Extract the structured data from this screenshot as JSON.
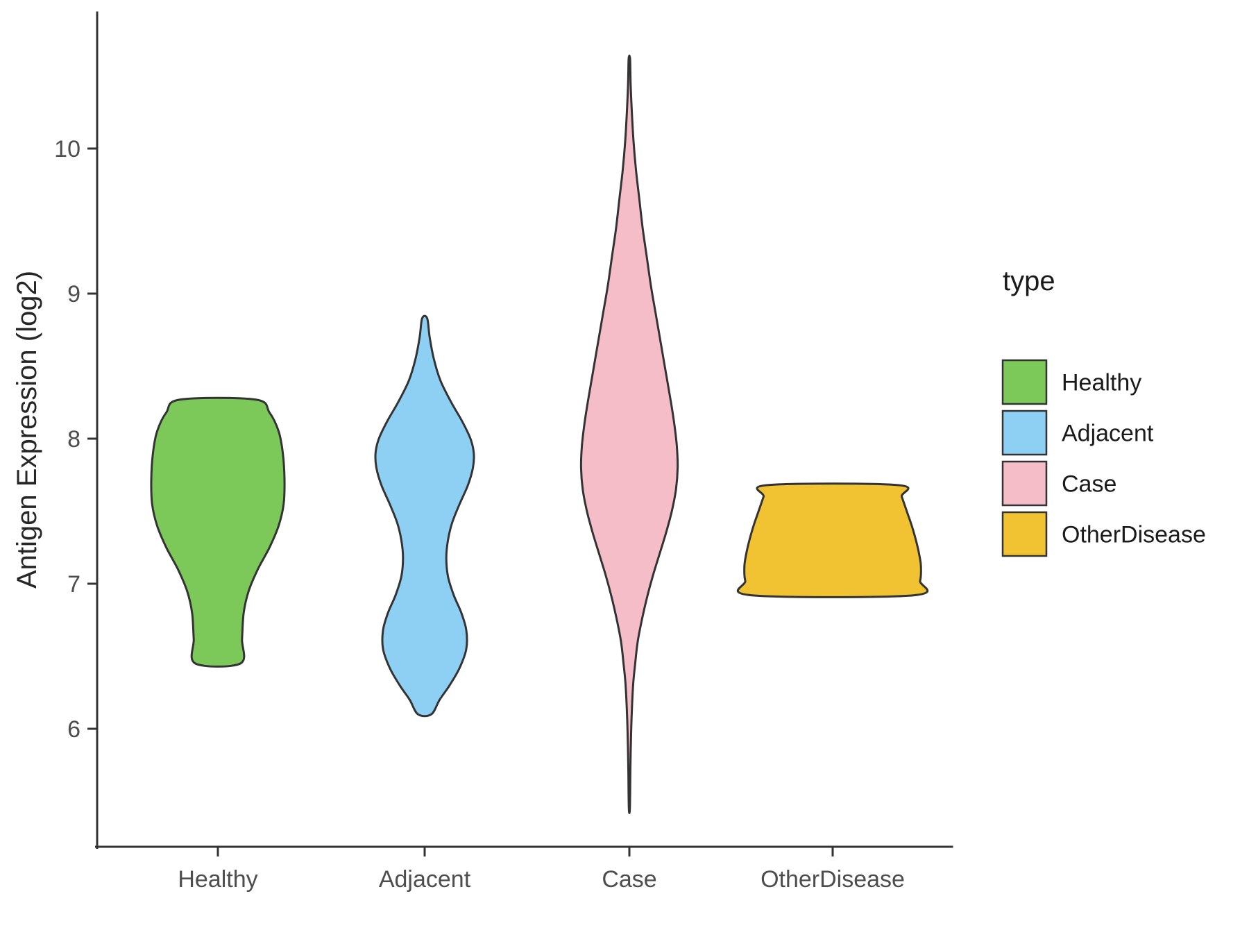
{
  "figure": {
    "background": "#ffffff",
    "axis_color": "#333333",
    "tick_label_color": "#4d4d4d",
    "title_color": "#262626"
  },
  "chart_data": {
    "type": "violin",
    "title": "",
    "xlabel": "",
    "ylabel": "Antigen Expression (log2)",
    "ylim": [
      5.2,
      10.9
    ],
    "y_ticks": [
      6,
      7,
      8,
      9,
      10
    ],
    "categories": [
      "Healthy",
      "Adjacent",
      "Case",
      "OtherDisease"
    ],
    "grid": false,
    "legend": {
      "title": "type",
      "position": "right",
      "entries": [
        {
          "label": "Healthy",
          "color": "#7cc95a"
        },
        {
          "label": "Adjacent",
          "color": "#8ed0f4"
        },
        {
          "label": "Case",
          "color": "#f5bdc8"
        },
        {
          "label": "OtherDisease",
          "color": "#f1c232"
        }
      ]
    },
    "stroke_color": "#333333",
    "stroke_width": 3,
    "series": [
      {
        "name": "Healthy",
        "color": "#7cc95a",
        "y_min": 6.45,
        "y_max": 8.27,
        "peak_y": 7.7,
        "profile": [
          [
            8.27,
            0.45
          ],
          [
            8.18,
            0.62
          ],
          [
            8.05,
            0.73
          ],
          [
            7.9,
            0.78
          ],
          [
            7.72,
            0.8
          ],
          [
            7.55,
            0.79
          ],
          [
            7.4,
            0.73
          ],
          [
            7.25,
            0.62
          ],
          [
            7.1,
            0.48
          ],
          [
            6.95,
            0.37
          ],
          [
            6.8,
            0.31
          ],
          [
            6.62,
            0.29
          ],
          [
            6.45,
            0.27
          ]
        ]
      },
      {
        "name": "Adjacent",
        "color": "#8ed0f4",
        "y_min": 6.1,
        "y_max": 8.83,
        "peak_y": 7.9,
        "profile": [
          [
            8.83,
            0.03
          ],
          [
            8.7,
            0.06
          ],
          [
            8.55,
            0.11
          ],
          [
            8.4,
            0.19
          ],
          [
            8.25,
            0.32
          ],
          [
            8.12,
            0.45
          ],
          [
            8.0,
            0.55
          ],
          [
            7.9,
            0.59
          ],
          [
            7.8,
            0.58
          ],
          [
            7.68,
            0.52
          ],
          [
            7.55,
            0.42
          ],
          [
            7.42,
            0.33
          ],
          [
            7.3,
            0.28
          ],
          [
            7.18,
            0.26
          ],
          [
            7.05,
            0.28
          ],
          [
            6.92,
            0.35
          ],
          [
            6.8,
            0.44
          ],
          [
            6.68,
            0.5
          ],
          [
            6.55,
            0.5
          ],
          [
            6.42,
            0.42
          ],
          [
            6.3,
            0.3
          ],
          [
            6.2,
            0.18
          ],
          [
            6.1,
            0.08
          ]
        ]
      },
      {
        "name": "Case",
        "color": "#f5bdc8",
        "y_min": 5.45,
        "y_max": 10.62,
        "peak_y": 7.8,
        "profile": [
          [
            10.62,
            0.008
          ],
          [
            10.45,
            0.015
          ],
          [
            10.25,
            0.03
          ],
          [
            10.05,
            0.05
          ],
          [
            9.85,
            0.08
          ],
          [
            9.65,
            0.12
          ],
          [
            9.45,
            0.16
          ],
          [
            9.25,
            0.21
          ],
          [
            9.05,
            0.26
          ],
          [
            8.85,
            0.32
          ],
          [
            8.65,
            0.38
          ],
          [
            8.45,
            0.44
          ],
          [
            8.25,
            0.5
          ],
          [
            8.1,
            0.54
          ],
          [
            7.95,
            0.57
          ],
          [
            7.8,
            0.58
          ],
          [
            7.65,
            0.56
          ],
          [
            7.5,
            0.51
          ],
          [
            7.35,
            0.44
          ],
          [
            7.2,
            0.36
          ],
          [
            7.05,
            0.28
          ],
          [
            6.9,
            0.21
          ],
          [
            6.75,
            0.15
          ],
          [
            6.6,
            0.1
          ],
          [
            6.45,
            0.07
          ],
          [
            6.3,
            0.045
          ],
          [
            6.1,
            0.028
          ],
          [
            5.9,
            0.018
          ],
          [
            5.7,
            0.012
          ],
          [
            5.45,
            0.006
          ]
        ]
      },
      {
        "name": "OtherDisease",
        "color": "#f1c232",
        "y_min": 6.92,
        "y_max": 7.68,
        "peak_y": 7.05,
        "profile": [
          [
            7.68,
            0.78
          ],
          [
            7.6,
            0.83
          ],
          [
            7.5,
            0.89
          ],
          [
            7.4,
            0.95
          ],
          [
            7.3,
            1.0
          ],
          [
            7.2,
            1.04
          ],
          [
            7.12,
            1.06
          ],
          [
            7.02,
            1.05
          ],
          [
            6.92,
            0.97
          ]
        ]
      }
    ]
  }
}
